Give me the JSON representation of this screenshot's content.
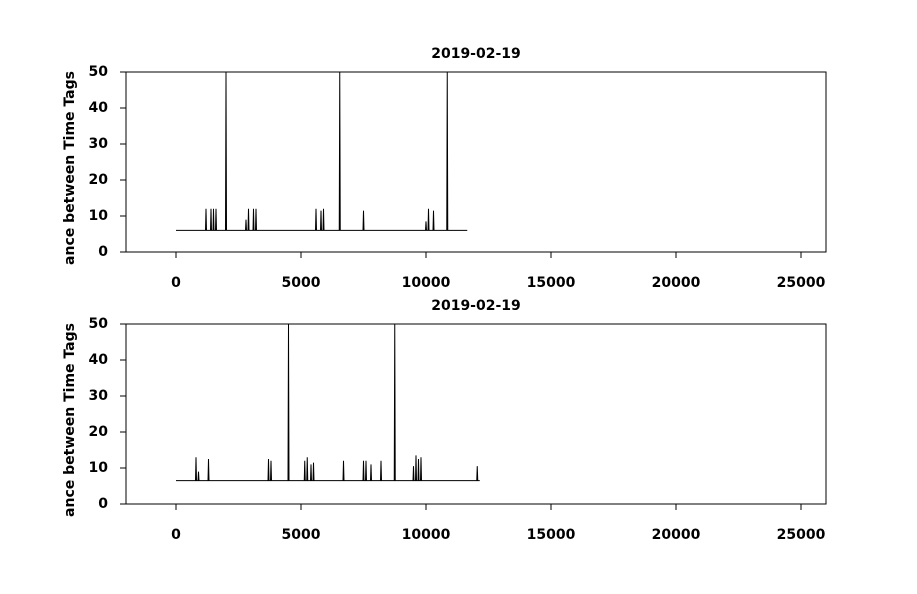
{
  "chart_data": [
    {
      "type": "line",
      "title": "2019-02-19",
      "ylabel": "ance between Time Tags",
      "xlim": [
        -2000,
        26000
      ],
      "xticks": [
        0,
        5000,
        10000,
        15000,
        20000,
        25000
      ],
      "ylim": [
        0,
        50
      ],
      "yticks": [
        0,
        10,
        20,
        30,
        40,
        50
      ],
      "color": "#000000",
      "x": [
        0,
        1180,
        1200,
        1220,
        1380,
        1400,
        1420,
        1480,
        1500,
        1520,
        1580,
        1600,
        1620,
        1980,
        2000,
        2020,
        2780,
        2800,
        2820,
        2880,
        2900,
        2920,
        3080,
        3100,
        3120,
        3180,
        3200,
        3220,
        5580,
        5600,
        5620,
        5780,
        5800,
        5820,
        5880,
        5900,
        5920,
        6530,
        6550,
        6570,
        7480,
        7500,
        7520,
        9980,
        10000,
        10020,
        10080,
        10100,
        10120,
        10280,
        10300,
        10320,
        10830,
        10850,
        10870,
        11650
      ],
      "values": [
        6,
        6,
        12,
        6,
        6,
        12,
        6,
        6,
        12,
        6,
        6,
        12,
        6,
        6,
        50,
        6,
        6,
        9,
        6,
        6,
        12,
        6,
        6,
        12,
        6,
        6,
        12,
        6,
        6,
        12,
        6,
        6,
        11.5,
        6,
        6,
        12,
        6,
        6,
        50,
        6,
        6,
        11.5,
        6,
        6,
        8.5,
        6,
        6,
        12,
        6,
        6,
        11.5,
        6,
        6,
        50,
        6,
        6
      ]
    },
    {
      "type": "line",
      "title": "2019-02-19",
      "ylabel": "ance between Time Tags",
      "xlim": [
        -2000,
        26000
      ],
      "xticks": [
        0,
        5000,
        10000,
        15000,
        20000,
        25000
      ],
      "ylim": [
        0,
        50
      ],
      "yticks": [
        0,
        10,
        20,
        30,
        40,
        50
      ],
      "color": "#000000",
      "x": [
        0,
        780,
        800,
        820,
        880,
        900,
        920,
        1280,
        1300,
        1320,
        3680,
        3700,
        3720,
        3780,
        3800,
        3820,
        4480,
        4500,
        4520,
        5130,
        5150,
        5170,
        5230,
        5250,
        5270,
        5380,
        5400,
        5420,
        5480,
        5500,
        5520,
        6680,
        6700,
        6720,
        7480,
        7500,
        7520,
        7580,
        7600,
        7620,
        7780,
        7800,
        7820,
        8180,
        8200,
        8220,
        8730,
        8750,
        8770,
        9480,
        9500,
        9520,
        9580,
        9600,
        9620,
        9680,
        9700,
        9720,
        9780,
        9800,
        9820,
        12030,
        12050,
        12070,
        12150
      ],
      "values": [
        6.5,
        6.5,
        13,
        6.5,
        6.5,
        9,
        6.5,
        6.5,
        12.5,
        6.5,
        6.5,
        12.5,
        6.5,
        6.5,
        12,
        6.5,
        6.5,
        50,
        6.5,
        6.5,
        12,
        6.5,
        6.5,
        13,
        6.5,
        6.5,
        11,
        6.5,
        6.5,
        11.5,
        6.5,
        6.5,
        12,
        6.5,
        6.5,
        12,
        6.5,
        6.5,
        12,
        6.5,
        6.5,
        11,
        6.5,
        6.5,
        12,
        6.5,
        6.5,
        50,
        6.5,
        6.5,
        10.5,
        6.5,
        6.5,
        13.5,
        6.5,
        6.5,
        12.5,
        6.5,
        6.5,
        13,
        6.5,
        6.5,
        10.5,
        6.5,
        6.5
      ]
    }
  ]
}
